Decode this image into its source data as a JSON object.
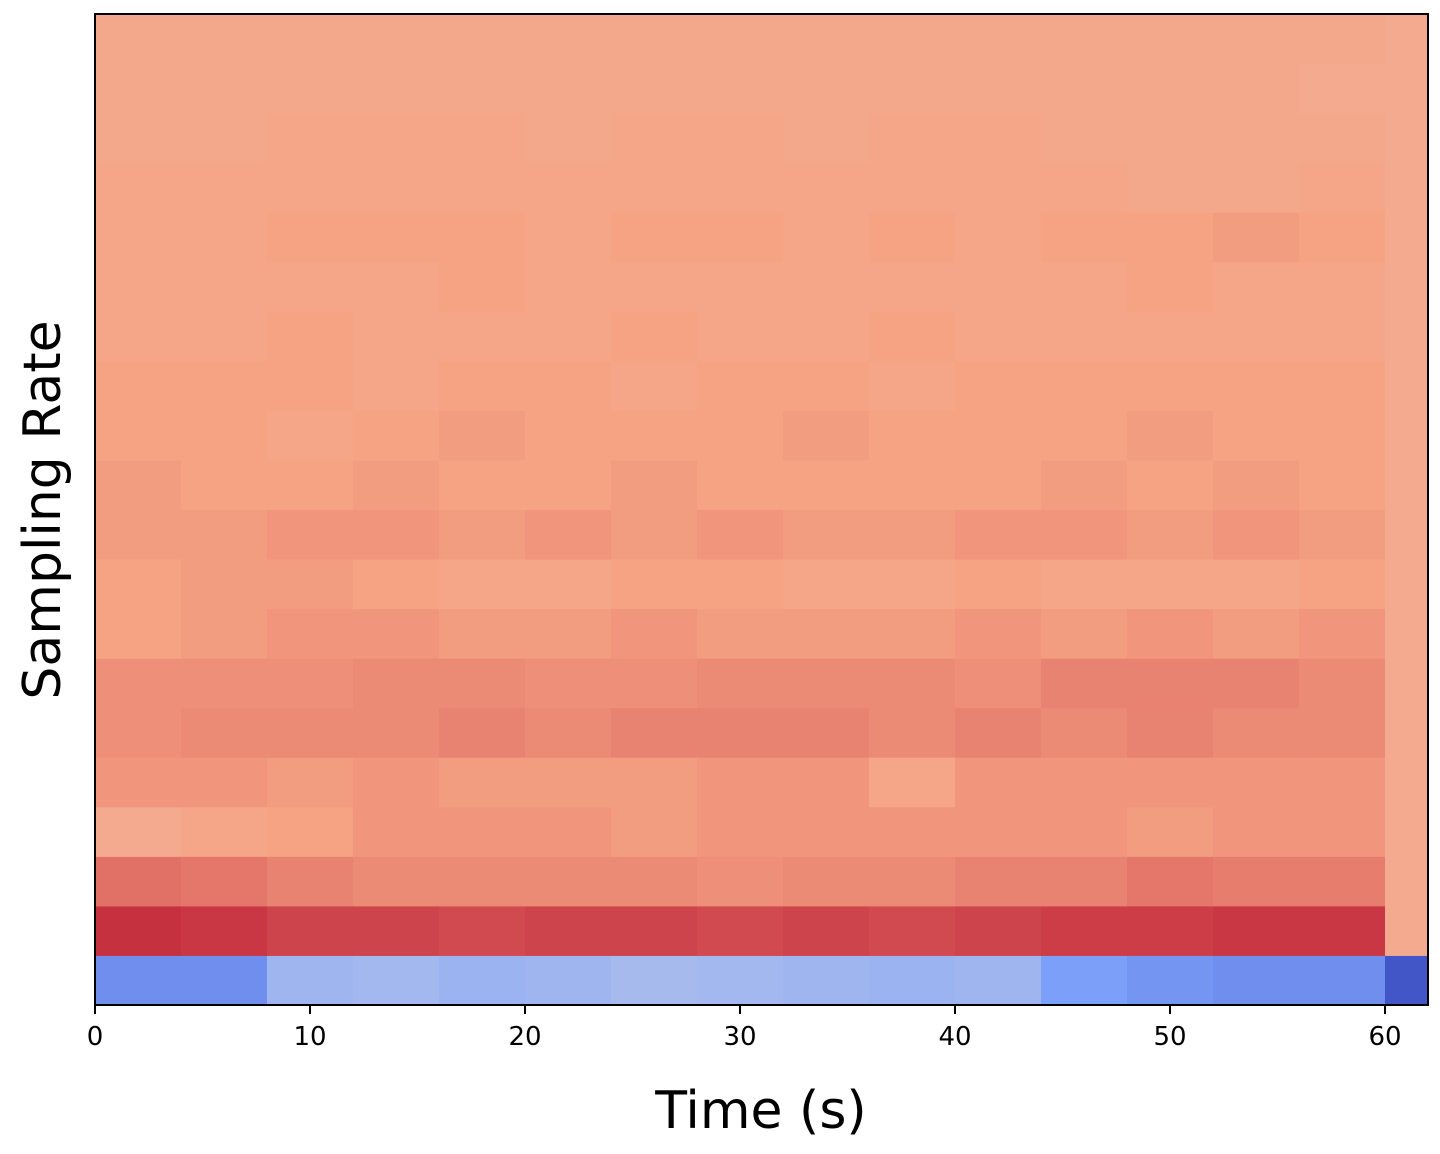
{
  "chart_data": {
    "type": "heatmap",
    "xlabel": "Time (s)",
    "ylabel": "Sampling Rate",
    "colormap": "coolwarm",
    "clim": [
      0,
      1
    ],
    "x": [
      0,
      4,
      8,
      12,
      16,
      20,
      24,
      28,
      32,
      36,
      40,
      44,
      48,
      52,
      56,
      60
    ],
    "xlim": [
      0,
      62
    ],
    "xticks": [
      0,
      10,
      20,
      30,
      40,
      50,
      60
    ],
    "ylim": [
      0,
      20
    ],
    "z": [
      [
        0.2,
        0.2,
        0.34,
        0.35,
        0.33,
        0.34,
        0.36,
        0.35,
        0.34,
        0.33,
        0.34,
        0.25,
        0.22,
        0.2,
        0.2,
        0.03
      ],
      [
        0.93,
        0.92,
        0.9,
        0.9,
        0.89,
        0.9,
        0.9,
        0.89,
        0.9,
        0.89,
        0.9,
        0.91,
        0.91,
        0.92,
        0.92,
        0.72
      ],
      [
        0.83,
        0.82,
        0.8,
        0.79,
        0.79,
        0.79,
        0.79,
        0.78,
        0.79,
        0.79,
        0.8,
        0.8,
        0.82,
        0.81,
        0.81,
        0.72
      ],
      [
        0.72,
        0.74,
        0.75,
        0.77,
        0.77,
        0.77,
        0.76,
        0.77,
        0.77,
        0.77,
        0.77,
        0.77,
        0.76,
        0.77,
        0.77,
        0.72
      ],
      [
        0.77,
        0.77,
        0.76,
        0.77,
        0.76,
        0.76,
        0.76,
        0.77,
        0.77,
        0.74,
        0.77,
        0.77,
        0.77,
        0.77,
        0.77,
        0.72
      ],
      [
        0.78,
        0.79,
        0.79,
        0.79,
        0.8,
        0.79,
        0.8,
        0.8,
        0.8,
        0.79,
        0.8,
        0.79,
        0.8,
        0.79,
        0.79,
        0.72
      ],
      [
        0.78,
        0.78,
        0.78,
        0.79,
        0.79,
        0.78,
        0.78,
        0.79,
        0.79,
        0.79,
        0.78,
        0.8,
        0.8,
        0.8,
        0.79,
        0.72
      ],
      [
        0.75,
        0.76,
        0.77,
        0.77,
        0.76,
        0.76,
        0.77,
        0.76,
        0.76,
        0.76,
        0.77,
        0.76,
        0.77,
        0.76,
        0.77,
        0.72
      ],
      [
        0.75,
        0.76,
        0.76,
        0.75,
        0.74,
        0.74,
        0.75,
        0.75,
        0.74,
        0.74,
        0.75,
        0.74,
        0.74,
        0.74,
        0.75,
        0.72
      ],
      [
        0.76,
        0.76,
        0.77,
        0.77,
        0.76,
        0.77,
        0.76,
        0.77,
        0.76,
        0.76,
        0.77,
        0.77,
        0.76,
        0.77,
        0.76,
        0.72
      ],
      [
        0.76,
        0.75,
        0.75,
        0.76,
        0.75,
        0.75,
        0.76,
        0.75,
        0.75,
        0.75,
        0.75,
        0.76,
        0.75,
        0.76,
        0.75,
        0.72
      ],
      [
        0.75,
        0.75,
        0.74,
        0.75,
        0.76,
        0.75,
        0.75,
        0.75,
        0.76,
        0.75,
        0.75,
        0.75,
        0.76,
        0.75,
        0.75,
        0.72
      ],
      [
        0.75,
        0.75,
        0.75,
        0.74,
        0.75,
        0.75,
        0.74,
        0.75,
        0.75,
        0.74,
        0.75,
        0.75,
        0.75,
        0.75,
        0.75,
        0.72
      ],
      [
        0.74,
        0.74,
        0.75,
        0.74,
        0.74,
        0.74,
        0.75,
        0.74,
        0.74,
        0.75,
        0.74,
        0.74,
        0.74,
        0.74,
        0.74,
        0.72
      ],
      [
        0.74,
        0.74,
        0.74,
        0.74,
        0.75,
        0.74,
        0.74,
        0.74,
        0.74,
        0.74,
        0.74,
        0.74,
        0.75,
        0.74,
        0.74,
        0.72
      ],
      [
        0.74,
        0.74,
        0.75,
        0.75,
        0.75,
        0.74,
        0.75,
        0.75,
        0.74,
        0.75,
        0.74,
        0.75,
        0.75,
        0.76,
        0.75,
        0.72
      ],
      [
        0.74,
        0.74,
        0.74,
        0.74,
        0.74,
        0.74,
        0.74,
        0.74,
        0.74,
        0.74,
        0.74,
        0.74,
        0.73,
        0.73,
        0.74,
        0.72
      ],
      [
        0.73,
        0.73,
        0.74,
        0.74,
        0.74,
        0.73,
        0.74,
        0.74,
        0.73,
        0.74,
        0.74,
        0.73,
        0.73,
        0.73,
        0.73,
        0.72
      ],
      [
        0.73,
        0.73,
        0.73,
        0.73,
        0.73,
        0.73,
        0.73,
        0.73,
        0.73,
        0.73,
        0.73,
        0.73,
        0.73,
        0.73,
        0.72,
        0.72
      ],
      [
        0.73,
        0.73,
        0.73,
        0.73,
        0.73,
        0.73,
        0.73,
        0.73,
        0.73,
        0.73,
        0.73,
        0.73,
        0.73,
        0.73,
        0.73,
        0.72
      ]
    ]
  }
}
